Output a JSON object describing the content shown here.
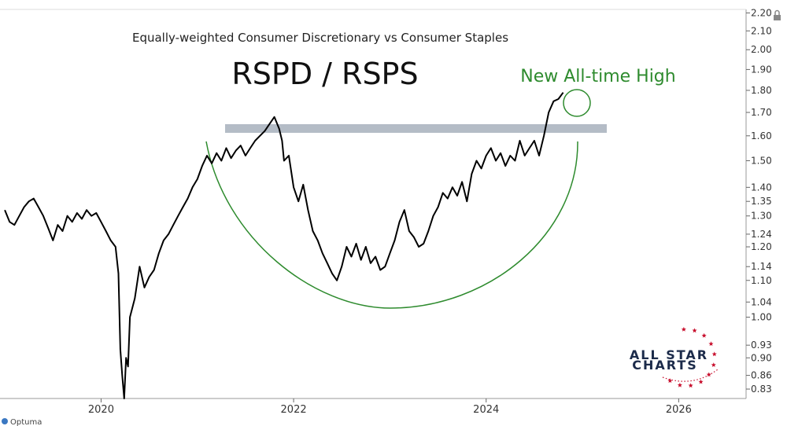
{
  "chart_data": {
    "type": "line",
    "subtitle": "Equally-weighted Consumer Discretionary vs Consumer Staples",
    "title": "RSPD / RSPS",
    "annotation": "New All-time High",
    "y_scale": "log",
    "ylim": [
      0.81,
      2.22
    ],
    "xlim": [
      2018.95,
      2026.7
    ],
    "x_ticks": [
      {
        "value": 2020,
        "label": "2020"
      },
      {
        "value": 2022,
        "label": "2022"
      },
      {
        "value": 2024,
        "label": "2024"
      },
      {
        "value": 2026,
        "label": "2026"
      }
    ],
    "y_ticks": [
      {
        "value": 2.2,
        "label": "2.20"
      },
      {
        "value": 2.1,
        "label": "2.10"
      },
      {
        "value": 2.0,
        "label": "2.00"
      },
      {
        "value": 1.9,
        "label": "1.90"
      },
      {
        "value": 1.8,
        "label": "1.80"
      },
      {
        "value": 1.7,
        "label": "1.70"
      },
      {
        "value": 1.6,
        "label": "1.60"
      },
      {
        "value": 1.5,
        "label": "1.50"
      },
      {
        "value": 1.4,
        "label": "1.40"
      },
      {
        "value": 1.35,
        "label": "1.35"
      },
      {
        "value": 1.3,
        "label": "1.30"
      },
      {
        "value": 1.24,
        "label": "1.24"
      },
      {
        "value": 1.2,
        "label": "1.20"
      },
      {
        "value": 1.14,
        "label": "1.14"
      },
      {
        "value": 1.1,
        "label": "1.10"
      },
      {
        "value": 1.04,
        "label": "1.04"
      },
      {
        "value": 1.0,
        "label": "1.00"
      },
      {
        "value": 0.93,
        "label": "0.93"
      },
      {
        "value": 0.9,
        "label": "0.90"
      },
      {
        "value": 0.86,
        "label": "0.86"
      },
      {
        "value": 0.83,
        "label": "0.83"
      }
    ],
    "series": [
      {
        "x": [
          2019.0,
          2019.05,
          2019.1,
          2019.15,
          2019.2,
          2019.25,
          2019.3,
          2019.35,
          2019.4,
          2019.45,
          2019.5,
          2019.55,
          2019.6,
          2019.65,
          2019.7,
          2019.75,
          2019.8,
          2019.85,
          2019.9,
          2019.95,
          2020.0,
          2020.05,
          2020.1,
          2020.15,
          2020.18,
          2020.2,
          2020.22,
          2020.24,
          2020.26,
          2020.28,
          2020.3,
          2020.35,
          2020.4,
          2020.45,
          2020.5,
          2020.55,
          2020.6,
          2020.65,
          2020.7,
          2020.75,
          2020.8,
          2020.85,
          2020.9,
          2020.95,
          2021.0,
          2021.05,
          2021.1,
          2021.15,
          2021.2,
          2021.25,
          2021.3,
          2021.35,
          2021.4,
          2021.45,
          2021.5,
          2021.55,
          2021.6,
          2021.65,
          2021.7,
          2021.75,
          2021.8,
          2021.85,
          2021.88,
          2021.9,
          2021.95,
          2022.0,
          2022.05,
          2022.1,
          2022.15,
          2022.2,
          2022.25,
          2022.3,
          2022.35,
          2022.4,
          2022.45,
          2022.5,
          2022.55,
          2022.6,
          2022.65,
          2022.7,
          2022.75,
          2022.8,
          2022.85,
          2022.9,
          2022.95,
          2023.0,
          2023.05,
          2023.1,
          2023.15,
          2023.2,
          2023.25,
          2023.3,
          2023.35,
          2023.4,
          2023.45,
          2023.5,
          2023.55,
          2023.6,
          2023.65,
          2023.7,
          2023.75,
          2023.8,
          2023.85,
          2023.9,
          2023.95,
          2024.0,
          2024.05,
          2024.1,
          2024.15,
          2024.2,
          2024.25,
          2024.3,
          2024.35,
          2024.4,
          2024.45,
          2024.5,
          2024.55,
          2024.6,
          2024.65,
          2024.7,
          2024.75,
          2024.8
        ],
        "values": [
          1.32,
          1.28,
          1.27,
          1.3,
          1.33,
          1.35,
          1.36,
          1.33,
          1.3,
          1.26,
          1.22,
          1.27,
          1.25,
          1.3,
          1.28,
          1.31,
          1.29,
          1.32,
          1.3,
          1.31,
          1.28,
          1.25,
          1.22,
          1.2,
          1.12,
          0.92,
          0.86,
          0.81,
          0.9,
          0.88,
          1.0,
          1.05,
          1.14,
          1.08,
          1.11,
          1.13,
          1.18,
          1.22,
          1.24,
          1.27,
          1.3,
          1.33,
          1.36,
          1.4,
          1.43,
          1.48,
          1.52,
          1.49,
          1.53,
          1.5,
          1.55,
          1.51,
          1.54,
          1.56,
          1.52,
          1.55,
          1.58,
          1.6,
          1.62,
          1.65,
          1.68,
          1.63,
          1.58,
          1.5,
          1.52,
          1.4,
          1.35,
          1.41,
          1.32,
          1.25,
          1.22,
          1.18,
          1.15,
          1.12,
          1.1,
          1.14,
          1.2,
          1.17,
          1.21,
          1.16,
          1.2,
          1.15,
          1.17,
          1.13,
          1.14,
          1.18,
          1.22,
          1.28,
          1.32,
          1.25,
          1.23,
          1.2,
          1.21,
          1.25,
          1.3,
          1.33,
          1.38,
          1.36,
          1.4,
          1.37,
          1.42,
          1.35,
          1.45,
          1.5,
          1.47,
          1.52,
          1.55,
          1.5,
          1.53,
          1.48,
          1.52,
          1.5,
          1.58,
          1.52,
          1.55,
          1.58,
          1.52,
          1.6,
          1.7,
          1.75,
          1.76,
          1.79
        ]
      }
    ],
    "grid": false,
    "legend": "none"
  },
  "branding": {
    "watermark_line1": "ALL STAR",
    "watermark_line2": "CHARTS",
    "vendor": "Optuma"
  },
  "colors": {
    "line": "#000000",
    "accent_green": "#2e8b2e",
    "band": "#b4bcc6",
    "logo_navy": "#1c2b4a",
    "logo_red": "#c8102e"
  },
  "icons": [
    "lock-icon"
  ]
}
